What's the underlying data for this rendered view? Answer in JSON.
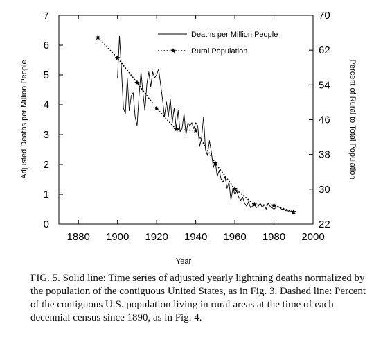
{
  "caption": {
    "label": "FIG. 5.",
    "text": "Solid line: Time series of adjusted yearly lightning deaths normalized by the population of the contiguous United States, as in Fig. 3. Dashed line: Percent of the contiguous U.S. population living in rural areas at the time of each decennial census since 1890, as in Fig. 4."
  },
  "chart_data": {
    "type": "line",
    "title": "",
    "xlabel": "Year",
    "ylabel": "Adjusted Deaths per Million People",
    "y2label": "Percent of Rural to Total Population",
    "xlim": [
      1870,
      2000
    ],
    "ylim": [
      0,
      7
    ],
    "y2lim": [
      22,
      70
    ],
    "x_ticks": [
      1880,
      1900,
      1920,
      1940,
      1960,
      1980,
      2000
    ],
    "y_ticks": [
      0,
      1,
      2,
      3,
      4,
      5,
      6,
      7
    ],
    "y2_ticks": [
      22,
      30,
      38,
      46,
      54,
      62,
      70
    ],
    "grid": false,
    "legend_position": "top-right",
    "series": [
      {
        "name": "Deaths per Million People",
        "axis": "left",
        "style": "solid",
        "x": [
          1900,
          1901,
          1902,
          1903,
          1904,
          1905,
          1906,
          1907,
          1908,
          1909,
          1910,
          1911,
          1912,
          1913,
          1914,
          1915,
          1916,
          1917,
          1918,
          1919,
          1920,
          1921,
          1922,
          1923,
          1924,
          1925,
          1926,
          1927,
          1928,
          1929,
          1930,
          1931,
          1932,
          1933,
          1934,
          1935,
          1936,
          1937,
          1938,
          1939,
          1940,
          1941,
          1942,
          1943,
          1944,
          1945,
          1946,
          1947,
          1948,
          1949,
          1950,
          1951,
          1952,
          1953,
          1954,
          1955,
          1956,
          1957,
          1958,
          1959,
          1960,
          1961,
          1962,
          1963,
          1964,
          1965,
          1966,
          1967,
          1968,
          1969,
          1970,
          1971,
          1972,
          1973,
          1974,
          1975,
          1976,
          1977,
          1978,
          1979,
          1980,
          1981,
          1982,
          1983,
          1984,
          1985,
          1986,
          1987,
          1988,
          1989,
          1990,
          1991
        ],
        "values": [
          4.9,
          6.3,
          5.2,
          3.9,
          3.7,
          4.9,
          3.8,
          4.3,
          4.4,
          3.6,
          3.3,
          4.3,
          5.1,
          4.4,
          3.8,
          4.7,
          5.1,
          4.6,
          5.1,
          4.9,
          5.0,
          5.2,
          4.7,
          4.2,
          3.6,
          4.1,
          3.6,
          4.2,
          3.4,
          3.9,
          3.2,
          3.8,
          3.1,
          3.2,
          3.7,
          3.0,
          3.4,
          3.3,
          3.4,
          3.2,
          3.4,
          3.3,
          2.6,
          2.9,
          3.6,
          2.5,
          2.3,
          2.8,
          2.4,
          1.9,
          2.1,
          1.6,
          1.8,
          1.5,
          1.4,
          1.6,
          1.2,
          1.4,
          0.8,
          1.2,
          1.0,
          1.1,
          0.9,
          0.8,
          0.9,
          0.7,
          0.6,
          0.75,
          0.55,
          0.6,
          0.65,
          0.55,
          0.6,
          0.7,
          0.55,
          0.65,
          0.5,
          0.7,
          0.6,
          0.55,
          0.5,
          0.55,
          0.6,
          0.55,
          0.5,
          0.5,
          0.45,
          0.45,
          0.4,
          0.45,
          0.35,
          0.35
        ]
      },
      {
        "name": "Rural Population",
        "axis": "right",
        "style": "dotted",
        "marker": "star",
        "x": [
          1890,
          1900,
          1910,
          1920,
          1930,
          1940,
          1950,
          1960,
          1970,
          1980,
          1990
        ],
        "values": [
          64.9,
          60.2,
          54.5,
          48.6,
          43.8,
          43.5,
          36.0,
          30.1,
          26.5,
          26.3,
          24.8
        ]
      }
    ]
  }
}
